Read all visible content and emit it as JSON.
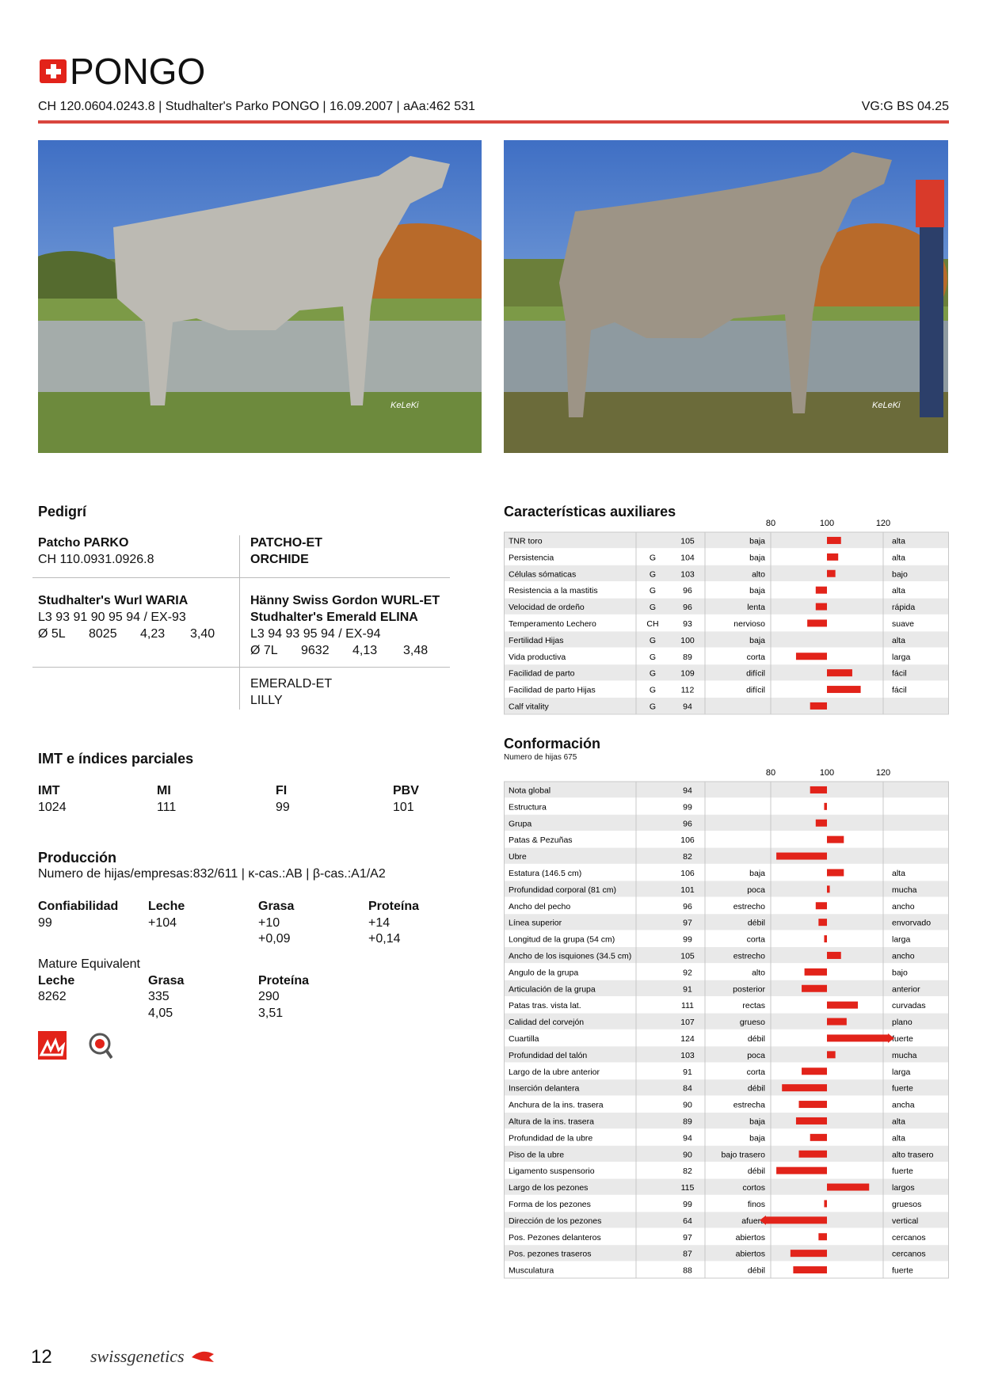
{
  "header": {
    "title": "PONGO",
    "id_line": "CH 120.0604.0243.8 | Studhalter's Parko PONGO | 16.09.2007 | aAa:462 531",
    "classification": "VG:G BS 04.25"
  },
  "photos": [
    {
      "watermark": "KeLeKi"
    },
    {
      "watermark": "KeLeKi"
    }
  ],
  "pedigree": {
    "title": "Pedigrí",
    "sire": {
      "name": "Patcho PARKO",
      "id": "CH 110.0931.0926.8"
    },
    "sire_parents": [
      "PATCHO-ET",
      "ORCHIDE"
    ],
    "dam": {
      "name": "Studhalter's Wurl WARIA",
      "classification": "L3 93 91 90 95 94 / EX-93",
      "lactations": "Ø 5L",
      "milk": "8025",
      "fat": "4,23",
      "protein": "3,40"
    },
    "dam_parents": {
      "sire": "Hänny Swiss Gordon WURL-ET",
      "dam": "Studhalter's Emerald ELINA",
      "classification": "L3 94 93 95 94 / EX-94",
      "lactations": "Ø 7L",
      "milk": "9632",
      "fat": "4,13",
      "protein": "3,48"
    },
    "grand_dam_parents": [
      "EMERALD-ET",
      "LILLY"
    ]
  },
  "indices": {
    "title": "IMT e índices parciales",
    "headers": [
      "IMT",
      "MI",
      "FI",
      "PBV"
    ],
    "values": [
      "1024",
      "111",
      "99",
      "101"
    ]
  },
  "production": {
    "title": "Producción",
    "info": "Numero de hijas/empresas:832/611 | κ-cas.:AB | β-cas.:A1/A2",
    "headers": [
      "Confiabilidad",
      "Leche",
      "Grasa",
      "Proteína"
    ],
    "values": [
      "99",
      "+104",
      "+10",
      "+14"
    ],
    "percent": [
      "+0,09",
      "+0,14"
    ]
  },
  "mature": {
    "title": "Mature Equivalent",
    "headers": [
      "Leche",
      "Grasa",
      "Proteína"
    ],
    "values": [
      "8262",
      "335",
      "290"
    ],
    "percent": [
      "4,05",
      "3,51"
    ]
  },
  "auxiliary": {
    "title": "Características auxiliares",
    "xlim": [
      80,
      120
    ],
    "ticks": [
      80,
      100,
      120
    ],
    "rows": [
      {
        "label": "TNR toro",
        "value": 105,
        "low": "baja",
        "high": "alta"
      },
      {
        "label": "Persistencia",
        "code": "G",
        "value": 104,
        "low": "baja",
        "high": "alta"
      },
      {
        "label": "Células sómaticas",
        "code": "G",
        "value": 103,
        "low": "alto",
        "high": "bajo"
      },
      {
        "label": "Resistencia a la mastitis",
        "code": "G",
        "value": 96,
        "low": "baja",
        "high": "alta"
      },
      {
        "label": "Velocidad de ordeño",
        "code": "G",
        "value": 96,
        "low": "lenta",
        "high": "rápida"
      },
      {
        "label": "Temperamento Lechero",
        "code": "CH",
        "value": 93,
        "low": "nervioso",
        "high": "suave"
      },
      {
        "label": "Fertilidad Hijas",
        "code": "G",
        "value": 100,
        "low": "baja",
        "high": "alta"
      },
      {
        "label": "Vida productiva",
        "code": "G",
        "value": 89,
        "low": "corta",
        "high": "larga"
      },
      {
        "label": "Facilidad de parto",
        "code": "G",
        "value": 109,
        "low": "difícil",
        "high": "fácil"
      },
      {
        "label": "Facilidad de parto Hijas",
        "code": "G",
        "value": 112,
        "low": "difícil",
        "high": "fácil"
      },
      {
        "label": "Calf vitality",
        "code": "G",
        "value": 94
      }
    ]
  },
  "conformation": {
    "title": "Conformación",
    "subtitle": "Numero de hijas 675",
    "xlim": [
      80,
      120
    ],
    "ticks": [
      80,
      100,
      120
    ],
    "rows": [
      {
        "label": "Nota global",
        "value": 94
      },
      {
        "label": "Estructura",
        "value": 99
      },
      {
        "label": "Grupa",
        "value": 96
      },
      {
        "label": "Patas & Pezuñas",
        "value": 106
      },
      {
        "label": "Ubre",
        "value": 82
      },
      {
        "label": "Estatura (146.5 cm)",
        "value": 106,
        "low": "baja",
        "high": "alta"
      },
      {
        "label": "Profundidad corporal (81 cm)",
        "value": 101,
        "low": "poca",
        "high": "mucha"
      },
      {
        "label": "Ancho del pecho",
        "value": 96,
        "low": "estrecho",
        "high": "ancho"
      },
      {
        "label": "Línea superior",
        "value": 97,
        "low": "débil",
        "high": "envorvado"
      },
      {
        "label": "Longitud de la grupa (54 cm)",
        "value": 99,
        "low": "corta",
        "high": "larga"
      },
      {
        "label": "Ancho de los isquiones (34.5 cm)",
        "value": 105,
        "low": "estrecho",
        "high": "ancho"
      },
      {
        "label": "Angulo de la grupa",
        "value": 92,
        "low": "alto",
        "high": "bajo"
      },
      {
        "label": "Articulación de la grupa",
        "value": 91,
        "low": "posterior",
        "high": "anterior"
      },
      {
        "label": "Patas tras. vista lat.",
        "value": 111,
        "low": "rectas",
        "high": "curvadas"
      },
      {
        "label": "Calidad del corvejón",
        "value": 107,
        "low": "grueso",
        "high": "plano"
      },
      {
        "label": "Cuartilla",
        "value": 124,
        "low": "débil",
        "high": "fuerte"
      },
      {
        "label": "Profundidad del talón",
        "value": 103,
        "low": "poca",
        "high": "mucha"
      },
      {
        "label": "Largo de la ubre anterior",
        "value": 91,
        "low": "corta",
        "high": "larga"
      },
      {
        "label": "Inserción delantera",
        "value": 84,
        "low": "débil",
        "high": "fuerte"
      },
      {
        "label": "Anchura de la ins. trasera",
        "value": 90,
        "low": "estrecha",
        "high": "ancha"
      },
      {
        "label": "Altura de la ins. trasera",
        "value": 89,
        "low": "baja",
        "high": "alta"
      },
      {
        "label": "Profundidad de la ubre",
        "value": 94,
        "low": "baja",
        "high": "alta"
      },
      {
        "label": "Piso de la ubre",
        "value": 90,
        "low": "bajo trasero",
        "high": "alto trasero"
      },
      {
        "label": "Ligamento suspensorio",
        "value": 82,
        "low": "débil",
        "high": "fuerte"
      },
      {
        "label": "Largo de los pezones",
        "value": 115,
        "low": "cortos",
        "high": "largos"
      },
      {
        "label": "Forma de los pezones",
        "value": 99,
        "low": "finos",
        "high": "gruesos"
      },
      {
        "label": "Dirección de los pezones",
        "value": 64,
        "low": "afuera",
        "high": "vertical"
      },
      {
        "label": "Pos. Pezones delanteros",
        "value": 97,
        "low": "abiertos",
        "high": "cercanos"
      },
      {
        "label": "Pos. pezones traseros",
        "value": 87,
        "low": "abiertos",
        "high": "cercanos"
      },
      {
        "label": "Musculatura",
        "value": 88,
        "low": "débil",
        "high": "fuerte"
      }
    ]
  },
  "footer": {
    "page": "12",
    "brand": "swissgenetics"
  }
}
